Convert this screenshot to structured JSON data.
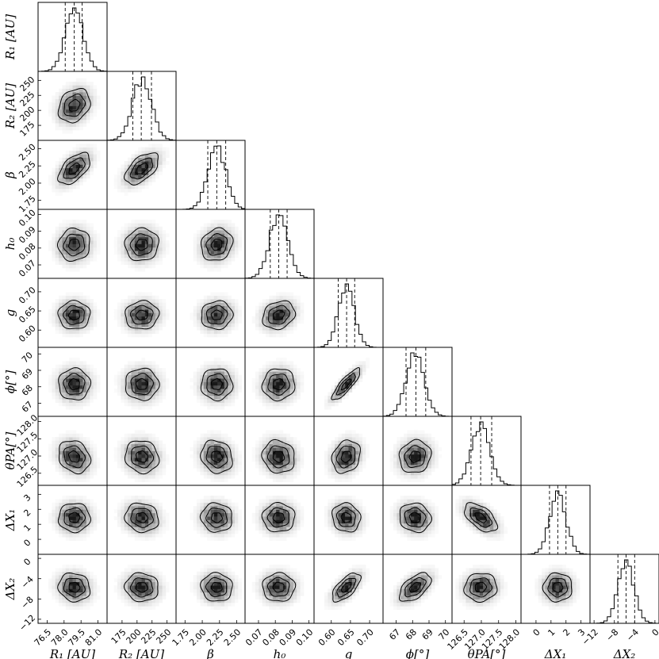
{
  "chart_data": {
    "type": "corner",
    "quantile_lines": "dashed",
    "parameters": [
      {
        "key": "R1",
        "label": "R₁ [AU]",
        "range": [
          75.7,
          81.8
        ],
        "ticks": [
          76.5,
          78.0,
          79.5,
          81.0
        ],
        "tick_labels": [
          "76.5",
          "78.0",
          "79.5",
          "81.0"
        ],
        "mean": 78.9,
        "sd": 0.8,
        "quantiles": [
          78.1,
          78.9,
          79.6
        ]
      },
      {
        "key": "R2",
        "label": "R₂ [AU]",
        "range": [
          150,
          265
        ],
        "ticks": [
          175,
          200,
          225,
          250
        ],
        "tick_labels": [
          "175",
          "200",
          "225",
          "250"
        ],
        "mean": 208,
        "sd": 16,
        "quantiles": [
          193,
          207,
          224
        ]
      },
      {
        "key": "beta",
        "label": "β",
        "range": [
          1.62,
          2.62
        ],
        "ticks": [
          1.75,
          2.0,
          2.25,
          2.5
        ],
        "tick_labels": [
          "1.75",
          "2.00",
          "2.25",
          "2.50"
        ],
        "mean": 2.21,
        "sd": 0.13,
        "quantiles": [
          2.08,
          2.21,
          2.34
        ]
      },
      {
        "key": "h0",
        "label": "h₀",
        "range": [
          0.062,
          0.103
        ],
        "ticks": [
          0.07,
          0.08,
          0.09,
          0.1
        ],
        "tick_labels": [
          "0.07",
          "0.08",
          "0.09",
          "0.10"
        ],
        "mean": 0.082,
        "sd": 0.0055,
        "quantiles": [
          0.077,
          0.082,
          0.087
        ]
      },
      {
        "key": "g",
        "label": "g",
        "range": [
          0.555,
          0.735
        ],
        "ticks": [
          0.6,
          0.65,
          0.7
        ],
        "tick_labels": [
          "0.60",
          "0.65",
          "0.70"
        ],
        "mean": 0.639,
        "sd": 0.021,
        "quantiles": [
          0.618,
          0.64,
          0.661
        ]
      },
      {
        "key": "phi",
        "label": "ϕ[°]",
        "range": [
          66.2,
          70.4
        ],
        "ticks": [
          67,
          68,
          69,
          70
        ],
        "tick_labels": [
          "67",
          "68",
          "69",
          "70"
        ],
        "mean": 68.15,
        "sd": 0.55,
        "quantiles": [
          67.6,
          68.2,
          68.8
        ]
      },
      {
        "key": "thetaPA",
        "label": "θPA[°]",
        "range": [
          126.15,
          128.15
        ],
        "ticks": [
          126.5,
          127.0,
          127.5,
          128.0
        ],
        "tick_labels": [
          "126.5",
          "127.0",
          "127.5",
          "128.0"
        ],
        "mean": 126.98,
        "sd": 0.27,
        "quantiles": [
          126.7,
          126.98,
          127.3
        ]
      },
      {
        "key": "dX1",
        "label": "ΔX₁",
        "range": [
          -1.0,
          3.6
        ],
        "ticks": [
          0,
          1,
          2,
          3
        ],
        "tick_labels": [
          "0",
          "1",
          "2",
          "3"
        ],
        "mean": 1.45,
        "sd": 0.55,
        "quantiles": [
          0.9,
          1.45,
          2.0
        ]
      },
      {
        "key": "dX2",
        "label": "ΔX₂",
        "range": [
          -12.8,
          0.8
        ],
        "ticks": [
          -12,
          -8,
          -4,
          0
        ],
        "tick_labels": [
          "−12",
          "−8",
          "−4",
          "0"
        ],
        "mean": -5.7,
        "sd": 1.6,
        "quantiles": [
          -7.3,
          -5.7,
          -4.0
        ]
      }
    ],
    "correlations": {
      "1,0": 0.25,
      "2,0": 0.55,
      "2,1": 0.55,
      "3,0": 0.05,
      "3,1": 0.05,
      "3,2": 0.15,
      "4,0": 0.0,
      "4,1": 0.05,
      "4,2": 0.05,
      "4,3": 0.2,
      "5,0": 0.0,
      "5,1": 0.0,
      "5,2": 0.0,
      "5,3": 0.05,
      "5,4": 0.85,
      "6,0": -0.2,
      "6,1": -0.1,
      "6,2": -0.15,
      "6,3": -0.1,
      "6,4": 0.2,
      "6,5": 0.1,
      "7,0": 0.0,
      "7,1": -0.1,
      "7,2": -0.05,
      "7,3": 0.0,
      "7,4": -0.1,
      "7,5": -0.1,
      "7,6": -0.55,
      "8,0": -0.1,
      "8,1": -0.05,
      "8,2": -0.05,
      "8,3": 0.0,
      "8,4": 0.65,
      "8,5": 0.55,
      "8,6": 0.05,
      "8,7": 0.0
    }
  }
}
